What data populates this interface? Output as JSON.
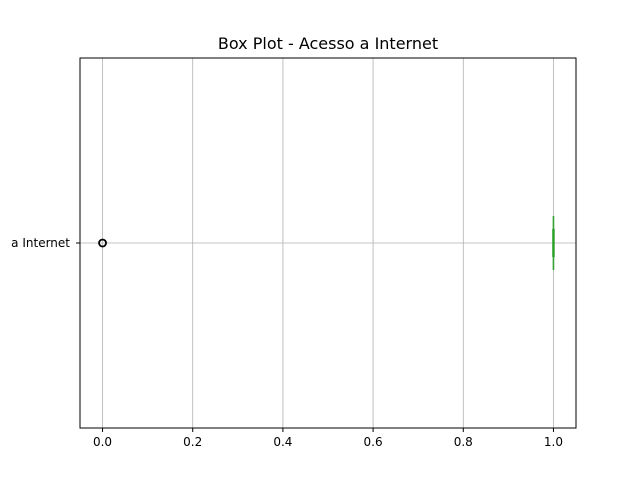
{
  "chart_data": {
    "type": "box",
    "orientation": "horizontal",
    "title": "Box Plot - Acesso a Internet",
    "xlabel": "",
    "ylabel": "",
    "xlim": [
      -0.05,
      1.05
    ],
    "xticks": [
      0.0,
      0.2,
      0.4,
      0.6,
      0.8,
      1.0
    ],
    "xtick_labels": [
      "0.0",
      "0.2",
      "0.4",
      "0.6",
      "0.8",
      "1.0"
    ],
    "categories": [
      "Acesso a Internet"
    ],
    "category_label_visible": "a Internet",
    "grid": true,
    "boxes": [
      {
        "category": "Acesso a Internet",
        "min": 1.0,
        "q1": 1.0,
        "median": 1.0,
        "q3": 1.0,
        "max": 1.0,
        "outliers": [
          0.0
        ]
      }
    ],
    "colors": {
      "median": "#2ca02c",
      "box": "#1f77b4",
      "grid": "#b0b0b0",
      "outlier": "#000000"
    }
  }
}
